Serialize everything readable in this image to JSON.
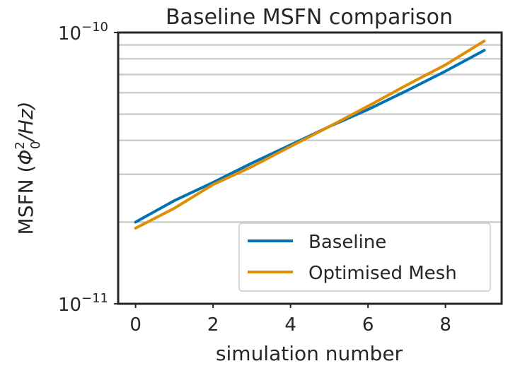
{
  "chart_data": {
    "type": "line",
    "title": "Baseline MSFN comparison",
    "xlabel": "simulation number",
    "ylabel": "MSFN (Φ₀²/Hz)",
    "ylabel_parts": {
      "prefix": "MSFN (",
      "phi": "Φ",
      "sup": "2",
      "sub": "0",
      "suffix": "/Hz)"
    },
    "yscale": "log",
    "xlim": [
      -0.45,
      9.45
    ],
    "ylim": [
      1e-11,
      1e-10
    ],
    "x_ticks": [
      0,
      2,
      4,
      6,
      8
    ],
    "x_tick_labels": [
      "0",
      "2",
      "4",
      "6",
      "8"
    ],
    "y_ticks": [
      1e-11,
      1e-10
    ],
    "y_tick_labels": [
      {
        "base": "10",
        "exp": "−11"
      },
      {
        "base": "10",
        "exp": "−10"
      }
    ],
    "grid": "horizontal-minor",
    "legend_position": "lower-right",
    "x": [
      0,
      1,
      2,
      3,
      4,
      5,
      6,
      7,
      8,
      9
    ],
    "series": [
      {
        "name": "Baseline",
        "color": "#0173b2",
        "values": [
          2e-11,
          2.4e-11,
          2.8e-11,
          3.3e-11,
          3.85e-11,
          4.5e-11,
          5.2e-11,
          6.1e-11,
          7.2e-11,
          8.6e-11
        ]
      },
      {
        "name": "Optimised Mesh",
        "color": "#de8f05",
        "values": [
          1.9e-11,
          2.25e-11,
          2.75e-11,
          3.2e-11,
          3.8e-11,
          4.5e-11,
          5.35e-11,
          6.4e-11,
          7.6e-11,
          9.3e-11
        ]
      }
    ]
  }
}
